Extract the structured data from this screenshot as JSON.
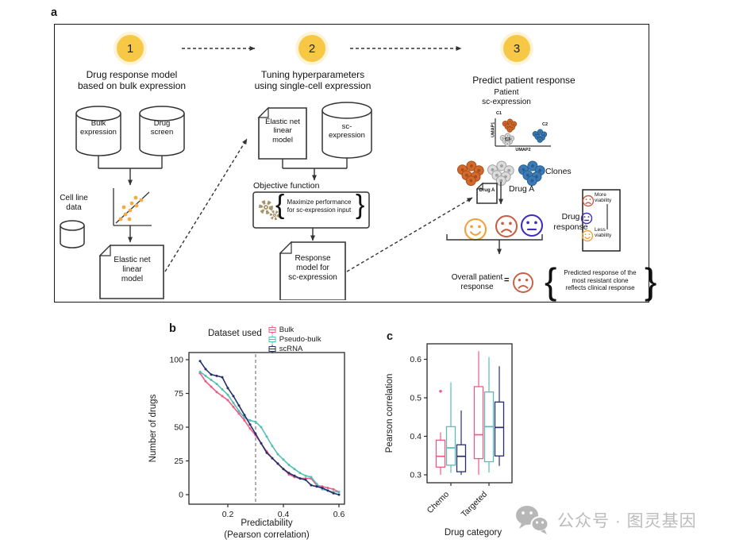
{
  "panel_a": {
    "label": "a",
    "step1": {
      "number": "1",
      "title": "Drug response model\nbased on bulk expression",
      "cylinder1": "Bulk\nexpression",
      "cylinder2": "Drug\nscreen",
      "side_note": "Cell line\ndata",
      "doc": "Elastic net\nlinear\nmodel"
    },
    "step2": {
      "number": "2",
      "title": "Tuning hyperparameters\nusing single-cell expression",
      "doc": "Elastic net\nlinear\nmodel",
      "cylinder": "sc-\nexpression",
      "objective_title": "Objective function",
      "objective_body": "Maximize performance\nfor sc-expression input",
      "brace_open": "{",
      "brace_close": "}",
      "doc2": "Response\nmodel for\nsc-expression"
    },
    "step3": {
      "number": "3",
      "title": "Predict patient response",
      "patient": "Patient\nsc-expression",
      "umap_y": "UMAP1",
      "umap_x": "UMAP2",
      "c1": "C1",
      "c2": "C2",
      "c3": "C3",
      "clones": "Clones",
      "drug_doc": "Drug A",
      "drug_arrow": "Drug A",
      "response": "Drug\nresponse",
      "overall": "Overall patient\nresponse",
      "equals": "=",
      "brace_open": "{",
      "brace_close": "}",
      "prediction_note": "Predicted response of the\nmost resistant clone\nreflects clinical response",
      "viability_more": "More\nviability",
      "viability_less": "Less\nviability"
    }
  },
  "panel_b": {
    "label": "b",
    "legend_title": "Dataset used"
  },
  "panel_c": {
    "label": "c"
  },
  "watermark": {
    "text": "公众号 · 图灵基因"
  },
  "colors": {
    "accent_yellow": "#f7c845",
    "ink": "#1a1a1a",
    "tan_gear": "#a8946a",
    "scatter_dot": "#f3ab42",
    "cluster_orange": "#d2692e",
    "cluster_orange_dark": "#a94e15",
    "cluster_gray": "#dcdcdc",
    "cluster_gray_dark": "#a0a0a0",
    "cluster_blue": "#3c7ab3",
    "cluster_blue_dark": "#275d91",
    "face_smile": "#f0a13c",
    "face_frown": "#c75f45",
    "face_neutral": "#3e2ebf",
    "guide_dash": "#a39797",
    "watermark_gray": "#bcbcbc"
  },
  "chart_data": [
    {
      "type": "line",
      "title": "",
      "xlabel": "Predictability\n(Pearson correlation)",
      "ylabel": "Number of drugs",
      "xlim": [
        0.08,
        0.62
      ],
      "ylim": [
        0,
        100
      ],
      "xticks": [
        "0.2",
        "0.4",
        "0.6"
      ],
      "yticks": [
        0,
        25,
        50,
        75,
        100
      ],
      "guide_x": 0.3,
      "legend_title": "Dataset used",
      "legend_position": "top",
      "grid": false,
      "x": [
        0.1,
        0.12,
        0.14,
        0.16,
        0.18,
        0.2,
        0.22,
        0.24,
        0.26,
        0.28,
        0.3,
        0.32,
        0.34,
        0.36,
        0.38,
        0.4,
        0.42,
        0.44,
        0.46,
        0.48,
        0.5,
        0.52,
        0.54,
        0.56,
        0.58,
        0.6
      ],
      "series": [
        {
          "name": "Bulk",
          "color": "#ed5c84",
          "values": [
            90,
            84,
            80,
            76,
            73,
            70,
            65,
            60,
            55,
            49,
            44,
            38,
            32,
            27,
            23,
            19,
            15,
            13,
            12,
            12,
            12,
            7,
            6,
            5,
            4,
            2
          ]
        },
        {
          "name": "Pseudo-bulk",
          "color": "#56bfb3",
          "values": [
            91,
            88,
            85,
            82,
            78,
            74,
            68,
            62,
            57,
            55,
            54,
            50,
            43,
            36,
            30,
            26,
            22,
            19,
            16,
            14,
            13,
            8,
            4,
            3,
            2,
            2
          ]
        },
        {
          "name": "scRNA",
          "color": "#272f6b",
          "values": [
            99,
            93,
            89,
            88,
            87,
            79,
            73,
            66,
            59,
            52,
            45,
            38,
            31,
            27,
            23,
            19,
            16,
            14,
            12,
            11,
            7,
            6,
            5,
            3,
            1,
            0
          ]
        }
      ]
    },
    {
      "type": "boxplot",
      "title": "",
      "xlabel": "Drug category",
      "ylabel": "Pearson correlation",
      "ylim": [
        0.28,
        0.64
      ],
      "yticks": [
        "0.3",
        "0.4",
        "0.5",
        "0.6"
      ],
      "groups": [
        "Chemo",
        "Targeted"
      ],
      "series": [
        {
          "name": "Bulk",
          "color": "#ed5c84",
          "boxes": [
            {
              "low": 0.3,
              "q1": 0.32,
              "median": 0.348,
              "q3": 0.39,
              "high": 0.41,
              "outliers": [
                0.517
              ]
            },
            {
              "low": 0.3,
              "q1": 0.342,
              "median": 0.404,
              "q3": 0.529,
              "high": 0.621,
              "outliers": []
            }
          ]
        },
        {
          "name": "Pseudo-bulk",
          "color": "#56bfb3",
          "boxes": [
            {
              "low": 0.305,
              "q1": 0.325,
              "median": 0.37,
              "q3": 0.425,
              "high": 0.54,
              "outliers": []
            },
            {
              "low": 0.306,
              "q1": 0.334,
              "median": 0.425,
              "q3": 0.515,
              "high": 0.606,
              "outliers": []
            }
          ]
        },
        {
          "name": "scRNA",
          "color": "#272f6b",
          "boxes": [
            {
              "low": 0.3,
              "q1": 0.308,
              "median": 0.348,
              "q3": 0.378,
              "high": 0.467,
              "outliers": []
            },
            {
              "low": 0.323,
              "q1": 0.349,
              "median": 0.423,
              "q3": 0.489,
              "high": 0.582,
              "outliers": []
            }
          ]
        }
      ]
    }
  ]
}
